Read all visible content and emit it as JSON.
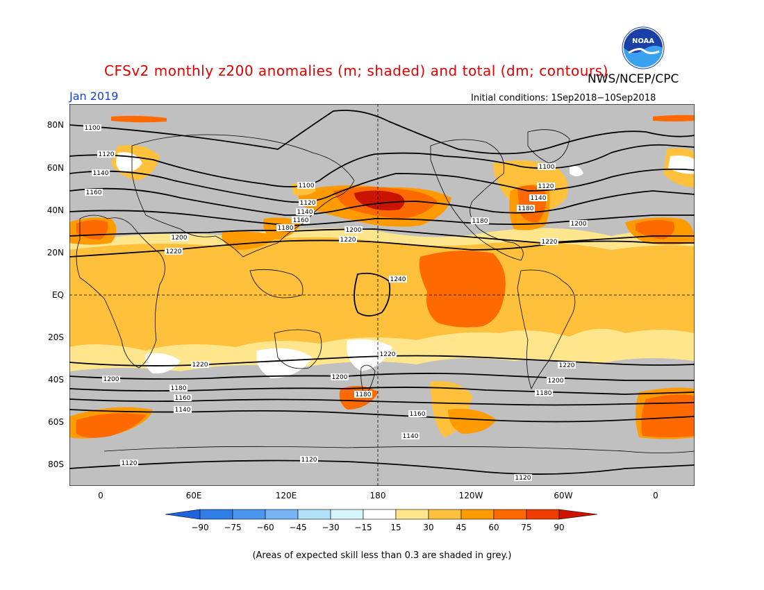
{
  "header": {
    "title": "CFSv2 monthly z200 anomalies (m; shaded) and total (dm; contours)",
    "agency": "NWS/NCEP/CPC",
    "month": "Jan 2019",
    "initial_conditions": "Initial conditions: 1Sep2018−10Sep2018",
    "logo_text": "NOAA"
  },
  "axes": {
    "y_ticks": [
      "80N",
      "60N",
      "40N",
      "20N",
      "EQ",
      "20S",
      "40S",
      "60S",
      "80S"
    ],
    "x_ticks": [
      "0",
      "60E",
      "120E",
      "180",
      "120W",
      "60W",
      "0"
    ]
  },
  "contour_labels": [
    "1100",
    "1120",
    "1140",
    "1160",
    "1180",
    "1200",
    "1220",
    "1240"
  ],
  "colorbar": {
    "labels": [
      "−90",
      "−75",
      "−60",
      "−45",
      "−30",
      "−15",
      "15",
      "30",
      "45",
      "60",
      "75",
      "90"
    ],
    "colors": [
      "#1e64dc",
      "#2f7ee6",
      "#4b96ef",
      "#78b4f5",
      "#b4e1fa",
      "#ffffff",
      "#ffe68c",
      "#ffc03c",
      "#ff9a00",
      "#ff6a00",
      "#f03c00",
      "#c81400"
    ]
  },
  "colors": {
    "skill_grey": "#c0c0c0",
    "positive_light": "#ffe68c",
    "positive_mid": "#ffc03c",
    "positive_strong": "#ff9a00",
    "positive_stronger": "#ff6a00",
    "positive_max": "#c81400"
  },
  "footnote": "(Areas of expected skill less than 0.3 are shaded in grey.)"
}
